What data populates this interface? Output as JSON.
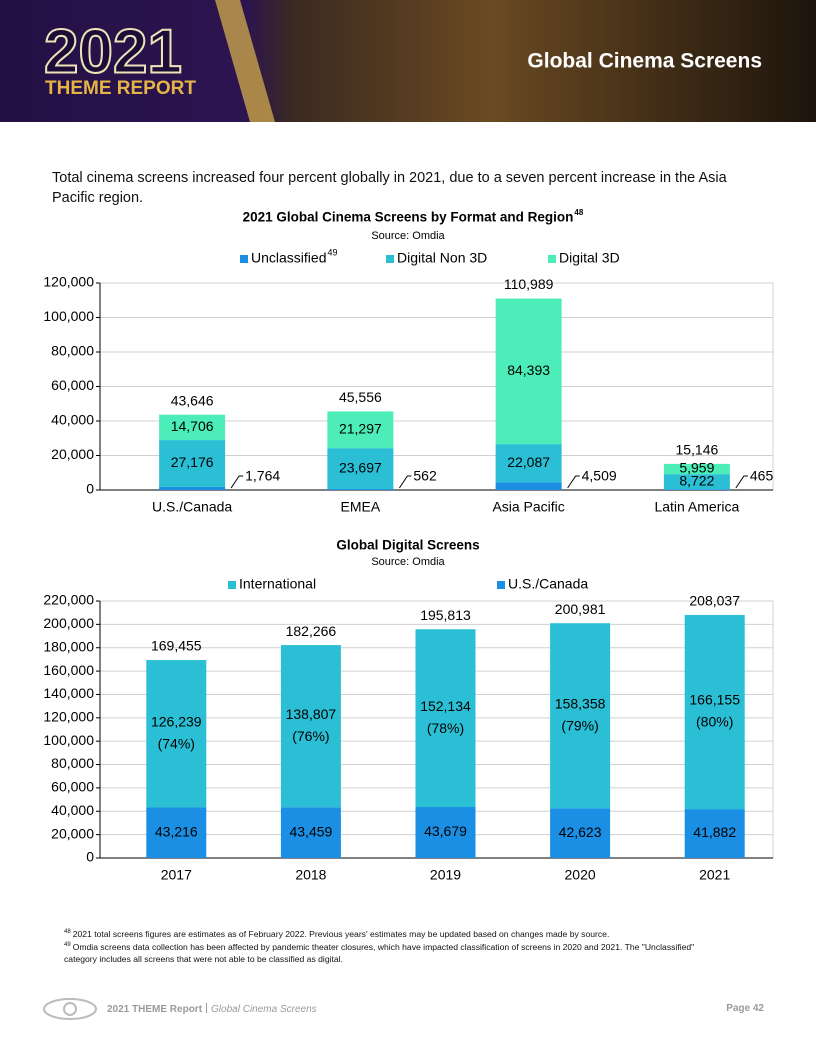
{
  "header": {
    "year": "2021",
    "report": "THEME REPORT",
    "section_title": "Global Cinema Screens"
  },
  "intro": "Total cinema screens increased four percent globally in 2021, due to a seven percent increase in the Asia Pacific region.",
  "chart_data": [
    {
      "type": "stacked_bar",
      "title": "2021 Global Cinema Screens by Format and Region",
      "title_note": "48",
      "subtitle": "Source: Omdia",
      "categories": [
        "U.S./Canada",
        "EMEA",
        "Asia Pacific",
        "Latin America"
      ],
      "series": [
        {
          "name": "Unclassified",
          "note": "49",
          "color": "#1a8fe3",
          "label_position": "outside",
          "values": [
            1764,
            562,
            4509,
            465
          ],
          "value_labels": [
            "1,764",
            "562",
            "4,509",
            "465"
          ]
        },
        {
          "name": "Digital Non 3D",
          "color": "#2bbfd6",
          "values": [
            27176,
            23697,
            22087,
            8722
          ],
          "value_labels": [
            "27,176",
            "23,697",
            "22,087",
            "8,722"
          ]
        },
        {
          "name": "Digital 3D",
          "color": "#4cedb8",
          "values": [
            14706,
            21297,
            84393,
            5959
          ],
          "value_labels": [
            "14,706",
            "21,297",
            "84,393",
            "5,959"
          ]
        }
      ],
      "totals": [
        43646,
        45556,
        110989,
        15146
      ],
      "total_labels": [
        "43,646",
        "45,556",
        "110,989",
        "15,146"
      ],
      "ylim": [
        0,
        120000
      ],
      "yticks": [
        0,
        {
          "value": 20000,
          "label": "20,000"
        },
        {
          "value": 40000,
          "label": "40,000"
        },
        {
          "value": 60000,
          "label": "60,000"
        },
        {
          "value": 80000,
          "label": "80,000"
        },
        {
          "value": 100000,
          "label": "100,000"
        },
        {
          "value": 120000,
          "label": "120,000"
        }
      ],
      "grid": true,
      "legend_order": "normal"
    },
    {
      "type": "stacked_bar",
      "title": "Global Digital Screens",
      "subtitle": "Source: Omdia",
      "categories": [
        "2017",
        "2018",
        "2019",
        "2020",
        "2021"
      ],
      "series": [
        {
          "name": "U.S./Canada",
          "color": "#1a8fe3",
          "values": [
            43216,
            43459,
            43679,
            42623,
            41882
          ],
          "value_labels": [
            "43,216",
            "43,459",
            "43,679",
            "42,623",
            "41,882"
          ]
        },
        {
          "name": "International",
          "color": "#2bbfd6",
          "values": [
            126239,
            138807,
            152134,
            158358,
            166155
          ],
          "value_labels": [
            "126,239",
            "138,807",
            "152,134",
            "158,358",
            "166,155"
          ],
          "share_labels": [
            "(74%)",
            "(76%)",
            "(78%)",
            "(79%)",
            "(80%)"
          ]
        }
      ],
      "totals": [
        169455,
        182266,
        195813,
        200981,
        208037
      ],
      "total_labels": [
        "169,455",
        "182,266",
        "195,813",
        "200,981",
        "208,037"
      ],
      "ylim": [
        0,
        220000
      ],
      "yticks": [
        0,
        {
          "value": 20000,
          "label": "20,000"
        },
        {
          "value": 40000,
          "label": "40,000"
        },
        {
          "value": 60000,
          "label": "60,000"
        },
        {
          "value": 80000,
          "label": "80,000"
        },
        {
          "value": 100000,
          "label": "100,000"
        },
        {
          "value": 120000,
          "label": "120,000"
        },
        {
          "value": 140000,
          "label": "140,000"
        },
        {
          "value": 160000,
          "label": "160,000"
        },
        {
          "value": 180000,
          "label": "180,000"
        },
        {
          "value": 200000,
          "label": "200,000"
        },
        {
          "value": 220000,
          "label": "220,000"
        }
      ],
      "grid": true,
      "legend_order": "reverse"
    }
  ],
  "footnotes": [
    {
      "number": "48",
      "text": "2021 total screens figures are estimates as of February 2022. Previous years' estimates may be updated based on changes made by source."
    },
    {
      "number": "49",
      "text": "Omdia screens data collection has been affected by pandemic theater closures, which have impacted classification of screens in 2020 and 2021. The \"Unclassified\" category includes all screens that were not able to be classified as digital."
    }
  ],
  "footer": {
    "report": "2021 THEME Report",
    "section": "Global Cinema Screens",
    "page": "Page 42"
  }
}
